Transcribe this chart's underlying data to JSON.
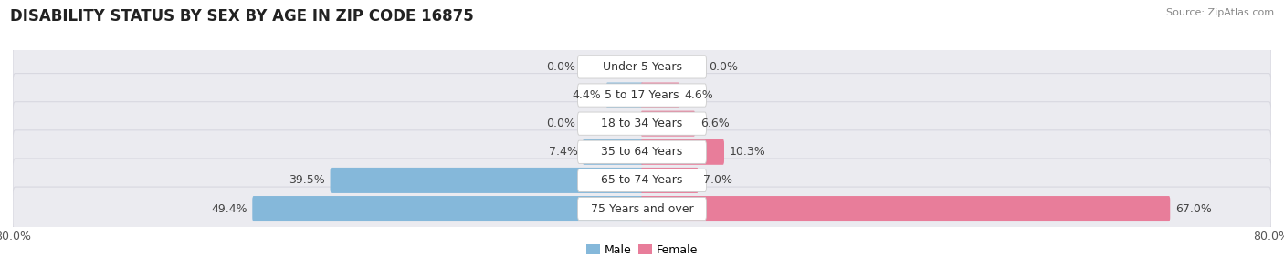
{
  "title": "DISABILITY STATUS BY SEX BY AGE IN ZIP CODE 16875",
  "source": "Source: ZipAtlas.com",
  "categories": [
    "Under 5 Years",
    "5 to 17 Years",
    "18 to 34 Years",
    "35 to 64 Years",
    "65 to 74 Years",
    "75 Years and over"
  ],
  "male_values": [
    0.0,
    4.4,
    0.0,
    7.4,
    39.5,
    49.4
  ],
  "female_values": [
    0.0,
    4.6,
    6.6,
    10.3,
    7.0,
    67.0
  ],
  "x_max": 80.0,
  "male_color": "#85b8da",
  "female_color": "#e87d9a",
  "row_bg_color": "#ebebf0",
  "row_border_color": "#d8d8e0",
  "label_bg_color": "#ffffff",
  "title_fontsize": 12,
  "label_fontsize": 9,
  "value_fontsize": 9,
  "tick_fontsize": 9,
  "source_fontsize": 8,
  "legend_fontsize": 9
}
